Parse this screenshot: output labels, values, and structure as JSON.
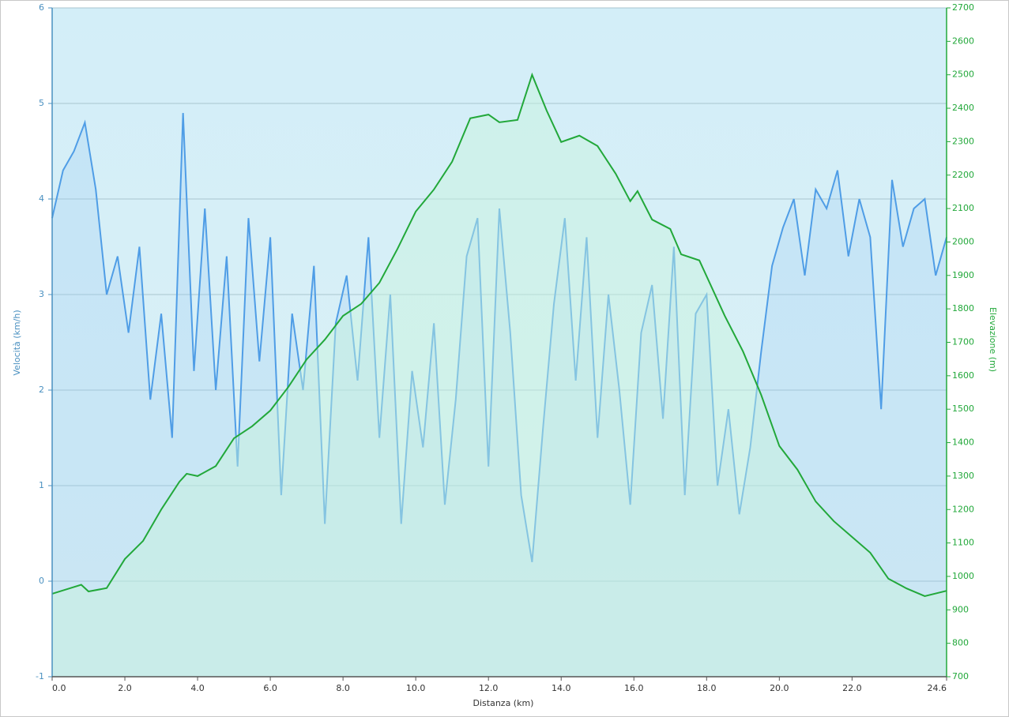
{
  "chart_data": {
    "type": "line",
    "xlabel": "Distanza  (km)",
    "ylabel": "Velocità (km/h)",
    "y2label": "Elevazione (m)",
    "xlim": [
      0,
      24.6
    ],
    "xticks": [
      {
        "value": 0,
        "label": "0.0"
      },
      {
        "value": 2,
        "label": "2.0"
      },
      {
        "value": 4,
        "label": "4.0"
      },
      {
        "value": 6,
        "label": "6.0"
      },
      {
        "value": 8,
        "label": "8.0"
      },
      {
        "value": 10,
        "label": "10.0"
      },
      {
        "value": 12,
        "label": "12.0"
      },
      {
        "value": 14,
        "label": "14.0"
      },
      {
        "value": 16,
        "label": "16.0"
      },
      {
        "value": 18,
        "label": "18.0"
      },
      {
        "value": 20,
        "label": "20.0"
      },
      {
        "value": 22,
        "label": "22.0"
      },
      24.6
    ],
    "ylim": [
      -1,
      6
    ],
    "yticks": [
      -1,
      0,
      1,
      2,
      3,
      4,
      5,
      6
    ],
    "y2lim": [
      700,
      2700
    ],
    "y2ticks": [
      700,
      800,
      900,
      1000,
      1100,
      1200,
      1300,
      1400,
      1500,
      1600,
      1700,
      1800,
      1900,
      2000,
      2100,
      2200,
      2300,
      2400,
      2500,
      2600,
      2700
    ],
    "grid": true,
    "series": [
      {
        "name": "Velocità",
        "color": "#4f9de6",
        "axis": "y",
        "x": [
          0,
          0.3,
          0.6,
          0.9,
          1.2,
          1.5,
          1.8,
          2.1,
          2.4,
          2.7,
          3,
          3.3,
          3.6,
          3.9,
          4.2,
          4.5,
          4.8,
          5.1,
          5.4,
          5.7,
          6,
          6.3,
          6.6,
          6.9,
          7.2,
          7.5,
          7.8,
          8.1,
          8.4,
          8.7,
          9,
          9.3,
          9.6,
          9.9,
          10.2,
          10.5,
          10.8,
          11.1,
          11.4,
          11.7,
          12,
          12.3,
          12.6,
          12.9,
          13.2,
          13.5,
          13.8,
          14.1,
          14.4,
          14.7,
          15,
          15.3,
          15.6,
          15.9,
          16.2,
          16.5,
          16.8,
          17.1,
          17.4,
          17.7,
          18,
          18.3,
          18.6,
          18.9,
          19.2,
          19.5,
          19.8,
          20.1,
          20.4,
          20.7,
          21,
          21.3,
          21.6,
          21.9,
          22.2,
          22.5,
          22.8,
          23.1,
          23.4,
          23.7,
          24,
          24.3,
          24.6
        ],
        "values": [
          3.8,
          4.3,
          4.5,
          4.8,
          4.1,
          3.0,
          3.4,
          2.6,
          3.5,
          1.9,
          2.8,
          1.5,
          4.9,
          2.2,
          3.9,
          2.0,
          3.4,
          1.2,
          3.8,
          2.3,
          3.6,
          0.9,
          2.8,
          2.0,
          3.3,
          0.6,
          2.7,
          3.2,
          2.1,
          3.6,
          1.5,
          3.0,
          0.6,
          2.2,
          1.4,
          2.7,
          0.8,
          1.9,
          3.4,
          3.8,
          1.2,
          3.9,
          2.6,
          0.9,
          0.2,
          1.6,
          2.9,
          3.8,
          2.1,
          3.6,
          1.5,
          3.0,
          2.0,
          0.8,
          2.6,
          3.1,
          1.7,
          3.5,
          0.9,
          2.8,
          3.0,
          1.0,
          1.8,
          0.7,
          1.4,
          2.4,
          3.3,
          3.7,
          4.0,
          3.2,
          4.1,
          3.9,
          4.3,
          3.4,
          4.0,
          3.6,
          1.8,
          4.2,
          3.5,
          3.9,
          4.0,
          3.2,
          3.6
        ]
      },
      {
        "name": "Elevazione",
        "color": "#22a83a",
        "axis": "y2",
        "x": [
          0,
          0.5,
          0.8,
          1.0,
          1.5,
          2.0,
          2.5,
          3.0,
          3.5,
          3.7,
          4.0,
          4.5,
          5.0,
          5.5,
          6.0,
          6.5,
          7.0,
          7.5,
          8.0,
          8.5,
          9.0,
          9.5,
          10.0,
          10.5,
          11.0,
          11.5,
          12.0,
          12.3,
          12.8,
          13.2,
          13.6,
          14.0,
          14.5,
          15.0,
          15.5,
          15.9,
          16.1,
          16.5,
          17.0,
          17.3,
          17.8,
          18.5,
          19.0,
          19.5,
          20.0,
          20.5,
          21.0,
          21.5,
          22.0,
          22.5,
          23.0,
          23.5,
          24.0,
          24.6
        ],
        "values": [
          948,
          965,
          975,
          955,
          965,
          1052,
          1106,
          1200,
          1283,
          1307,
          1300,
          1330,
          1413,
          1449,
          1496,
          1567,
          1649,
          1708,
          1779,
          1815,
          1878,
          1980,
          2091,
          2157,
          2240,
          2370,
          2381,
          2358,
          2365,
          2500,
          2393,
          2299,
          2318,
          2287,
          2204,
          2122,
          2152,
          2067,
          2039,
          1963,
          1945,
          1779,
          1673,
          1543,
          1390,
          1319,
          1224,
          1165,
          1118,
          1071,
          993,
          964,
          941,
          957
        ]
      }
    ]
  }
}
